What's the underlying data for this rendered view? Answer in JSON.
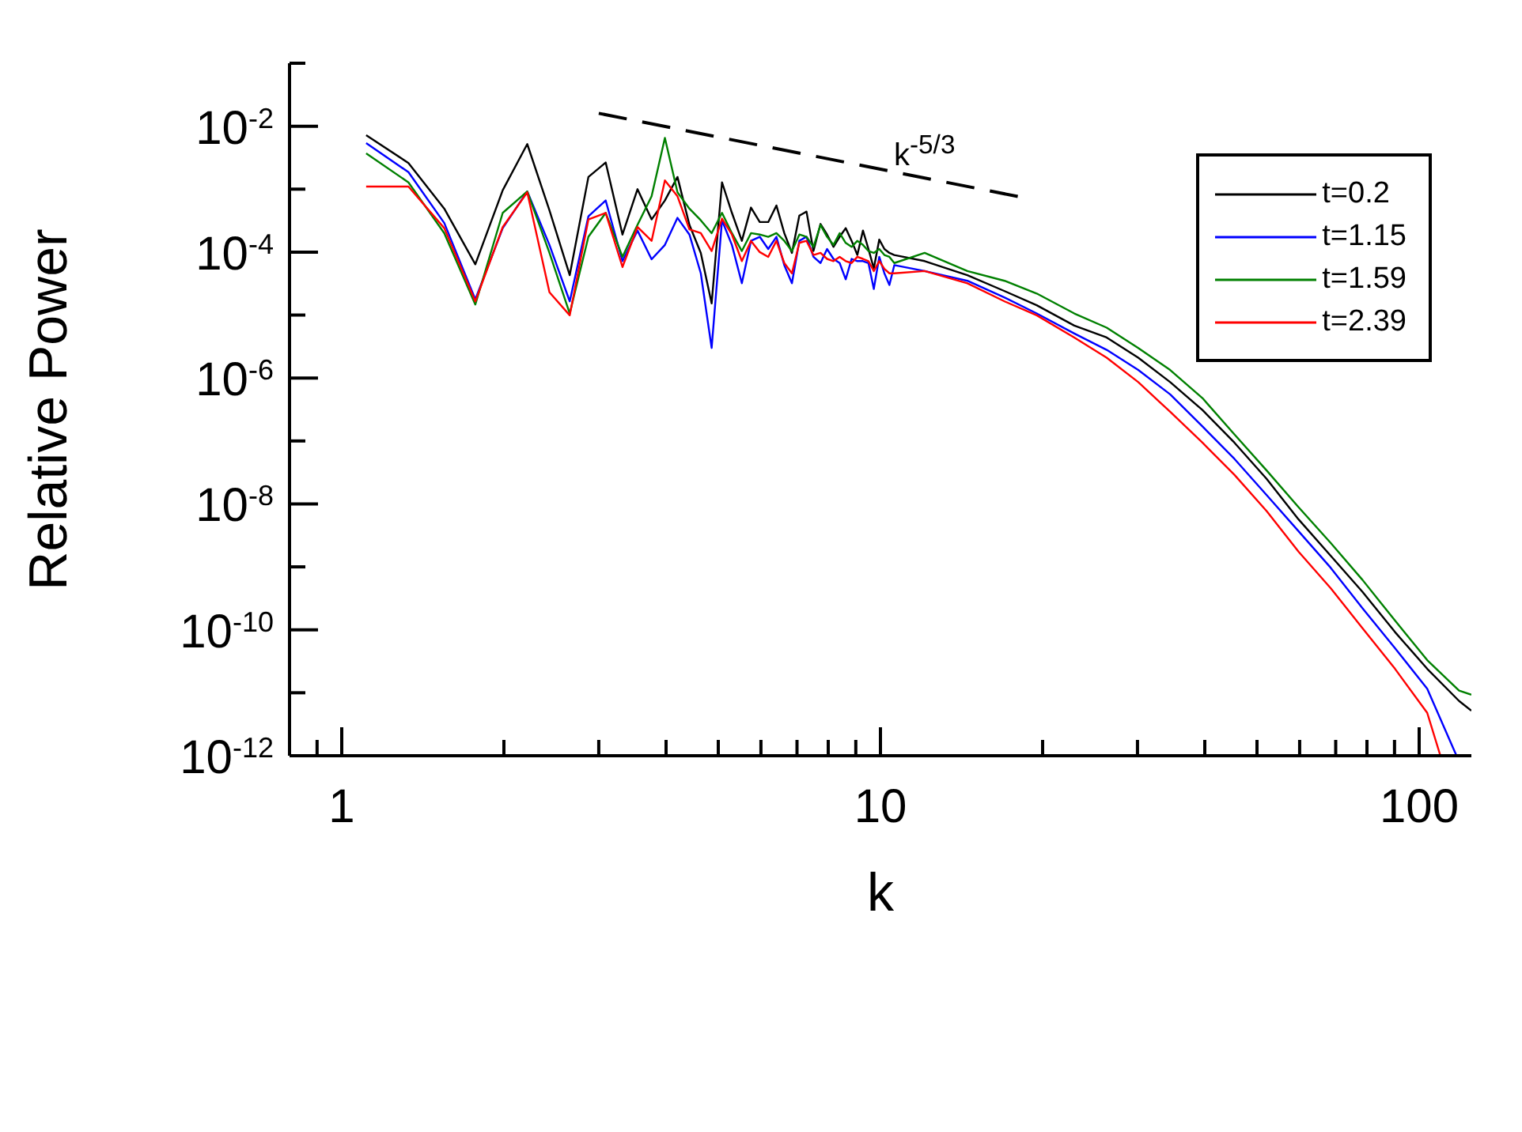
{
  "chart_data": {
    "type": "line",
    "xlabel": "k",
    "ylabel": "Relative Power",
    "log": "xy",
    "legend": "top right",
    "xlim": [
      0.8,
      125
    ],
    "ylim": [
      1e-12,
      0.1
    ],
    "xticks": [
      {
        "value": 0.9,
        "label": null
      },
      1,
      {
        "value": 2,
        "label": null
      },
      {
        "value": 3,
        "label": null
      },
      {
        "value": 4,
        "label": null
      },
      {
        "value": 5,
        "label": null
      },
      {
        "value": 6,
        "label": null
      },
      {
        "value": 7,
        "label": null
      },
      {
        "value": 8,
        "label": null
      },
      {
        "value": 9,
        "label": null
      },
      10,
      {
        "value": 20,
        "label": null
      },
      {
        "value": 30,
        "label": null
      },
      {
        "value": 40,
        "label": null
      },
      {
        "value": 50,
        "label": null
      },
      {
        "value": 60,
        "label": null
      },
      {
        "value": 70,
        "label": null
      },
      {
        "value": 80,
        "label": null
      },
      {
        "value": 90,
        "label": null
      },
      100
    ],
    "yticks": [
      {
        "value": 1e-12,
        "label": "10$^{-12}$"
      },
      {
        "value": 1e-11,
        "label": null
      },
      {
        "value": 1e-10,
        "label": "10$^{-10}$"
      },
      {
        "value": 1e-09,
        "label": null
      },
      {
        "value": 1e-08,
        "label": "10$^{-8}$"
      },
      {
        "value": 1e-07,
        "label": null
      },
      {
        "value": 1e-06,
        "label": "10$^{-6}$"
      },
      {
        "value": 1e-05,
        "label": null
      },
      {
        "value": 0.0001,
        "label": "10$^{-4}$"
      },
      {
        "value": 0.001,
        "label": null
      },
      {
        "value": 0.01,
        "label": "10$^{-2}$"
      },
      {
        "value": 0.1,
        "label": null
      }
    ],
    "annotations": [
      "k$^{-5/3}$"
    ],
    "series": [
      {
        "name": "t=0.2",
        "color": "#000000",
        "x": [
          1.11,
          1.33,
          1.55,
          1.77,
          1.99,
          2.21,
          2.43,
          2.65,
          2.87,
          3.09,
          3.32,
          3.54,
          3.76,
          3.98,
          4.2,
          4.42,
          4.64,
          4.86,
          5.08,
          5.3,
          5.53,
          5.75,
          5.97,
          6.19,
          6.41,
          6.63,
          6.85,
          7.07,
          7.29,
          7.51,
          7.74,
          7.96,
          8.18,
          8.4,
          8.62,
          8.84,
          9.06,
          9.28,
          9.5,
          9.72,
          9.95,
          10.17,
          10.39,
          10.61,
          12.08,
          14.5,
          17,
          19.5,
          22.9,
          26.3,
          30.1,
          34.5,
          39.6,
          45.4,
          52.1,
          59.7,
          68.5,
          78.5,
          90.2,
          103.5,
          118.6,
          125
        ],
        "values": [
          0.0072,
          0.0026,
          0.00049,
          6.4e-05,
          0.00096,
          0.0052,
          0.00046,
          4.3e-05,
          0.00156,
          0.00265,
          0.00019,
          0.001,
          0.00033,
          0.00066,
          0.00156,
          0.00027,
          9.7e-05,
          1.53e-05,
          0.00128,
          0.00042,
          0.000151,
          0.00051,
          0.0003,
          0.0003,
          0.00055,
          0.0002,
          9.7e-05,
          0.00038,
          0.00044,
          0.000104,
          0.00028,
          0.00019,
          0.000121,
          0.000175,
          0.00024,
          0.000151,
          9e-05,
          0.00022,
          0.000112,
          5.5e-05,
          0.000158,
          0.000112,
          9.7e-05,
          9e-05,
          7.2e-05,
          4.3e-05,
          2.4e-05,
          1.43e-05,
          6.8e-06,
          4.4e-06,
          2.1e-06,
          8.6e-07,
          3.1e-07,
          9.4e-08,
          2.5e-08,
          5.7e-09,
          1.5e-09,
          4e-10,
          9.2e-11,
          2.4e-11,
          7.4e-12,
          5.2e-12
        ]
      },
      {
        "name": "t=1.15",
        "color": "#0000ff",
        "x": [
          1.11,
          1.33,
          1.55,
          1.77,
          1.99,
          2.21,
          2.43,
          2.65,
          2.87,
          3.09,
          3.32,
          3.54,
          3.76,
          3.98,
          4.2,
          4.42,
          4.64,
          4.86,
          5.08,
          5.3,
          5.53,
          5.75,
          5.97,
          6.19,
          6.41,
          6.63,
          6.85,
          7.07,
          7.29,
          7.51,
          7.74,
          7.96,
          8.18,
          8.4,
          8.62,
          8.84,
          9.06,
          9.28,
          9.5,
          9.72,
          9.95,
          10.17,
          10.39,
          10.61,
          12.08,
          14.5,
          17,
          19.5,
          22.9,
          26.3,
          30.1,
          34.5,
          39.6,
          45.4,
          52.1,
          59.7,
          68.5,
          78.5,
          90.2,
          103.5,
          117.3
        ],
        "values": [
          0.0054,
          0.00186,
          0.00029,
          1.78e-05,
          0.00024,
          0.00092,
          0.00013,
          1.65e-05,
          0.00037,
          0.00066,
          7.2e-05,
          0.00022,
          7.7e-05,
          0.00013,
          0.00035,
          0.00019,
          4.6e-05,
          3e-06,
          0.00032,
          0.00013,
          3.2e-05,
          0.000151,
          0.000175,
          0.000112,
          0.000175,
          6.2e-05,
          3.2e-05,
          0.000151,
          0.000175,
          8.4e-05,
          6.7e-05,
          0.000112,
          7.8e-05,
          6.7e-05,
          3.7e-05,
          7.8e-05,
          7.2e-05,
          7.2e-05,
          6.7e-05,
          2.6e-05,
          8.4e-05,
          4.6e-05,
          3e-05,
          6.2e-05,
          5e-05,
          3.5e-05,
          1.9e-05,
          1.06e-05,
          5.1e-06,
          2.8e-06,
          1.34e-06,
          5.5e-07,
          1.7e-07,
          5.2e-08,
          1.38e-08,
          3.7e-09,
          9.7e-10,
          2.2e-10,
          5.1e-11,
          1.16e-11,
          1e-12
        ]
      },
      {
        "name": "t=1.59",
        "color": "#008000",
        "x": [
          1.11,
          1.33,
          1.55,
          1.77,
          1.99,
          2.21,
          2.43,
          2.65,
          2.87,
          3.09,
          3.32,
          3.54,
          3.76,
          3.98,
          4.2,
          4.42,
          4.64,
          4.86,
          5.08,
          5.3,
          5.53,
          5.75,
          5.97,
          6.19,
          6.41,
          6.63,
          6.85,
          7.07,
          7.29,
          7.51,
          7.74,
          7.96,
          8.18,
          8.4,
          8.62,
          8.84,
          9.06,
          9.28,
          9.5,
          9.72,
          9.95,
          10.17,
          10.39,
          10.61,
          12.08,
          14.5,
          17,
          19.5,
          22.9,
          26.3,
          30.1,
          34.5,
          39.6,
          45.4,
          52.1,
          59.7,
          68.5,
          78.5,
          90.2,
          103.5,
          118.6,
          125
        ],
        "values": [
          0.0037,
          0.00128,
          0.0002,
          1.47e-05,
          0.00042,
          0.00092,
          9.7e-05,
          1.06e-05,
          0.000175,
          0.00042,
          8.4e-05,
          0.00027,
          0.00077,
          0.0065,
          0.00089,
          0.00049,
          0.00032,
          0.0002,
          0.00042,
          0.0002,
          0.000104,
          0.0002,
          0.00019,
          0.000175,
          0.0002,
          0.000151,
          0.000104,
          0.00019,
          0.000175,
          0.000121,
          0.00027,
          0.000175,
          0.00013,
          0.0002,
          0.00014,
          0.000121,
          0.000151,
          0.00013,
          0.000104,
          9.7e-05,
          0.000112,
          9e-05,
          8.4e-05,
          6.7e-05,
          9.7e-05,
          5e-05,
          3.5e-05,
          2.2e-05,
          1.06e-05,
          6.3e-06,
          3e-06,
          1.34e-06,
          4.8e-07,
          1.27e-07,
          3.4e-08,
          8.9e-09,
          2.4e-09,
          6.2e-10,
          1.4e-10,
          3.3e-11,
          1.08e-11,
          9.3e-12
        ]
      },
      {
        "name": "t=2.39",
        "color": "#ff0000",
        "x": [
          1.11,
          1.33,
          1.55,
          1.77,
          1.99,
          2.21,
          2.43,
          2.65,
          2.87,
          3.09,
          3.32,
          3.54,
          3.76,
          3.98,
          4.2,
          4.42,
          4.64,
          4.86,
          5.08,
          5.3,
          5.53,
          5.75,
          5.97,
          6.19,
          6.41,
          6.63,
          6.85,
          7.07,
          7.29,
          7.51,
          7.74,
          7.96,
          8.18,
          8.4,
          8.62,
          8.84,
          9.06,
          9.28,
          9.5,
          9.72,
          9.95,
          10.17,
          10.39,
          10.61,
          12.08,
          14.5,
          17,
          19.5,
          22.9,
          26.3,
          30.1,
          34.5,
          39.6,
          45.4,
          52.1,
          59.7,
          68.5,
          78.5,
          90.2,
          103.5,
          109.5
        ],
        "values": [
          0.0011,
          0.0011,
          0.00024,
          1.65e-05,
          0.00025,
          0.00089,
          2.3e-05,
          9.9e-06,
          0.00033,
          0.00042,
          5.8e-05,
          0.00025,
          0.000151,
          0.00138,
          0.00077,
          0.00023,
          0.0002,
          0.000104,
          0.00034,
          0.00019,
          7.2e-05,
          0.000151,
          0.0001,
          8.4e-05,
          0.000151,
          6.7e-05,
          4.6e-05,
          0.00014,
          0.000151,
          9e-05,
          9.7e-05,
          7.8e-05,
          7.2e-05,
          8.4e-05,
          7.2e-05,
          6.7e-05,
          8.4e-05,
          7.8e-05,
          7.2e-05,
          5e-05,
          7.2e-05,
          5.4e-05,
          4.6e-05,
          4.6e-05,
          5e-05,
          3.2e-05,
          1.65e-05,
          9.9e-06,
          4.4e-06,
          2.1e-06,
          8.6e-07,
          2.9e-07,
          9.4e-08,
          2.9e-08,
          7.7e-09,
          1.75e-09,
          4.6e-10,
          1.06e-10,
          2.4e-11,
          4.8e-12,
          1e-12
        ]
      },
      {
        "type": "line",
        "color": "#000000",
        "line_style": "dashed",
        "x": [
          3,
          18.2
        ],
        "values": [
          0.016,
          0.00075
        ]
      }
    ]
  }
}
